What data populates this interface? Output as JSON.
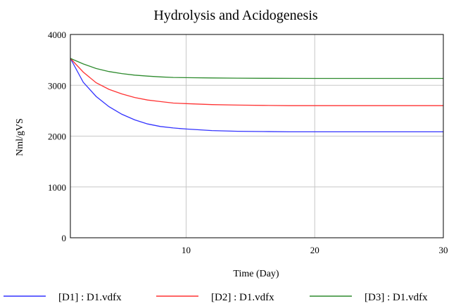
{
  "chart_data": {
    "type": "line",
    "title": "Hydrolysis and Acidogenesis",
    "xlabel": "Time (Day)",
    "ylabel": "Nml/gVS",
    "xlim": [
      1,
      30
    ],
    "ylim": [
      0,
      4000
    ],
    "x_ticks": [
      10,
      20,
      30
    ],
    "y_ticks": [
      0,
      1000,
      2000,
      3000,
      4000
    ],
    "grid": true,
    "legend_position": "bottom",
    "x": [
      1,
      2,
      3,
      4,
      5,
      6,
      7,
      8,
      9,
      10,
      12,
      14,
      16,
      18,
      20,
      25,
      30
    ],
    "series": [
      {
        "name": "[D1] : D1.vdfx",
        "color": "#3333ff",
        "values": [
          3530,
          3060,
          2780,
          2580,
          2430,
          2320,
          2240,
          2190,
          2160,
          2140,
          2110,
          2095,
          2090,
          2085,
          2085,
          2085,
          2085
        ]
      },
      {
        "name": "[D2] : D1.vdfx",
        "color": "#ff3333",
        "values": [
          3530,
          3260,
          3050,
          2920,
          2830,
          2760,
          2710,
          2680,
          2650,
          2640,
          2620,
          2610,
          2605,
          2600,
          2600,
          2600,
          2600
        ]
      },
      {
        "name": "[D3] : D1.vdfx",
        "color": "#2e8b2e",
        "values": [
          3530,
          3420,
          3330,
          3270,
          3230,
          3200,
          3180,
          3165,
          3155,
          3150,
          3145,
          3140,
          3138,
          3136,
          3135,
          3135,
          3135
        ]
      }
    ]
  }
}
